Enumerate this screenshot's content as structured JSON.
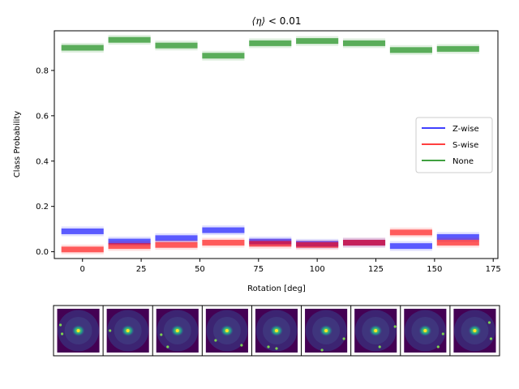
{
  "chart_data": {
    "type": "bar",
    "title": "⟨η⟩ < 0.01",
    "title_main": "⟨η⟩",
    "title_rest": " < 0.01",
    "xlabel": "Rotation [deg]",
    "ylabel": "Class Probability",
    "xlim": [
      -12,
      177
    ],
    "ylim": [
      -0.03,
      0.975
    ],
    "xticks": [
      0,
      25,
      50,
      75,
      100,
      125,
      150,
      175
    ],
    "yticks": [
      0.0,
      0.2,
      0.4,
      0.6,
      0.8
    ],
    "xtick_labels": [
      "0",
      "25",
      "50",
      "75",
      "100",
      "125",
      "150",
      "175"
    ],
    "ytick_labels": [
      "0.0",
      "0.2",
      "0.4",
      "0.6",
      "0.8"
    ],
    "bin_width": 18,
    "x": [
      0,
      20,
      40,
      60,
      80,
      100,
      120,
      140,
      160
    ],
    "series": [
      {
        "name": "Z-wise",
        "color": "#0000ff",
        "values": [
          0.09,
          0.045,
          0.06,
          0.095,
          0.045,
          0.035,
          0.04,
          0.025,
          0.065
        ]
      },
      {
        "name": "S-wise",
        "color": "#ff0000",
        "values": [
          0.01,
          0.025,
          0.03,
          0.04,
          0.035,
          0.03,
          0.04,
          0.085,
          0.04
        ]
      },
      {
        "name": "None",
        "color": "#008000",
        "values": [
          0.9,
          0.935,
          0.91,
          0.865,
          0.92,
          0.93,
          0.92,
          0.89,
          0.895
        ]
      }
    ],
    "legend_position": "center-right",
    "grid": false,
    "image_strip_count": 9
  }
}
